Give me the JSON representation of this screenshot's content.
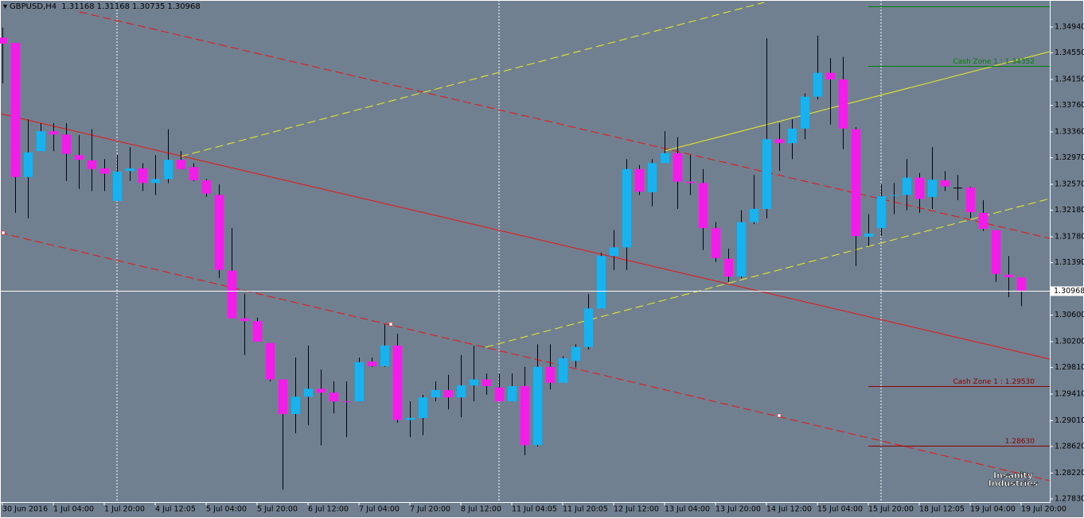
{
  "chart_data": {
    "type": "candlestick",
    "title": "GBPUSD,H4",
    "categories": [
      "30 Jun 2016",
      null,
      null,
      null,
      "1 Jul 04:00",
      null,
      null,
      null,
      "1 Jul 20:00",
      null,
      null,
      null,
      "4 Jul 12:05",
      null,
      null,
      null,
      "5 Jul 04:00",
      null,
      null,
      null,
      "5 Jul 20:00",
      null,
      null,
      null,
      "6 Jul 12:00",
      null,
      null,
      null,
      "7 Jul 04:00",
      null,
      null,
      null,
      "7 Jul 20:00",
      null,
      null,
      null,
      "8 Jul 12:00",
      null,
      null,
      null,
      "11 Jul 04:05",
      null,
      null,
      null,
      "11 Jul 20:05",
      null,
      null,
      null,
      "12 Jul 12:00",
      null,
      null,
      null,
      "13 Jul 04:00",
      null,
      null,
      null,
      "13 Jul 20:00",
      null,
      null,
      null,
      "14 Jul 12:00",
      null,
      null,
      null,
      "15 Jul 04:00",
      null,
      null,
      null,
      "15 Jul 20:00",
      null,
      null,
      null,
      "18 Jul 12:05",
      null,
      null,
      null,
      "19 Jul 04:00",
      null,
      null,
      null,
      "19 Jul 20:00"
    ],
    "open": [
      1.3478,
      1.347,
      1.3268,
      1.3307,
      1.3337,
      1.3332,
      1.3301,
      1.3293,
      1.3281,
      1.3232,
      1.3277,
      1.3281,
      1.3259,
      1.3265,
      1.3294,
      1.3283,
      1.3263,
      1.3241,
      1.3127,
      1.3055,
      1.3051,
      1.3018,
      1.2963,
      1.2911,
      1.2937,
      1.2949,
      1.2943,
      1.293,
      1.293,
      1.299,
      1.2983,
      1.3014,
      1.2902,
      1.2905,
      1.2936,
      1.2947,
      1.2936,
      1.2954,
      1.2963,
      1.2951,
      1.293,
      1.2953,
      1.2864,
      1.2982,
      1.2958,
      1.2991,
      1.3012,
      1.307,
      1.3149,
      1.3162,
      1.328,
      1.3245,
      1.3289,
      1.3304,
      1.3261,
      1.3259,
      1.3191,
      1.3145,
      1.3118,
      1.32,
      1.322,
      1.3325,
      1.3319,
      1.3341,
      1.3389,
      1.3425,
      1.3415,
      1.334,
      1.3178,
      1.3191,
      1.324,
      1.3241,
      1.3267,
      1.3238,
      1.3263,
      1.3252,
      1.3252,
      1.3214,
      1.3188,
      1.3121,
      1.31168
    ],
    "high": [
      1.3493,
      1.347,
      1.3355,
      1.3349,
      1.3349,
      1.3349,
      1.3331,
      1.334,
      1.3295,
      1.3301,
      1.3313,
      1.3289,
      1.3301,
      1.334,
      1.3307,
      1.3289,
      1.3265,
      1.3257,
      1.3191,
      1.3092,
      1.3056,
      1.3018,
      1.2963,
      1.2996,
      1.3014,
      1.2978,
      1.296,
      1.296,
      1.2996,
      1.2996,
      1.3046,
      1.3032,
      1.293,
      1.294,
      1.296,
      1.297,
      1.3,
      1.3014,
      1.2972,
      1.2972,
      1.2972,
      1.2982,
      1.3016,
      1.3016,
      1.2998,
      1.3016,
      1.3092,
      1.3154,
      1.3188,
      1.3295,
      1.3286,
      1.3295,
      1.3337,
      1.3328,
      1.3301,
      1.328,
      1.32,
      1.316,
      1.3218,
      1.3271,
      1.3477,
      1.3349,
      1.3355,
      1.3394,
      1.3481,
      1.3447,
      1.3449,
      1.3343,
      1.3212,
      1.3257,
      1.3259,
      1.3295,
      1.3274,
      1.3313,
      1.3277,
      1.3271,
      1.3253,
      1.3233,
      1.3188,
      1.3149,
      1.31168
    ],
    "low": [
      1.3409,
      1.3214,
      1.3206,
      1.3307,
      1.3307,
      1.3262,
      1.325,
      1.3247,
      1.3247,
      1.3232,
      1.3262,
      1.3247,
      1.3241,
      1.3259,
      1.328,
      1.3262,
      1.3238,
      1.3116,
      1.3055,
      1.3,
      1.302,
      1.296,
      1.2797,
      1.2882,
      1.2894,
      1.2864,
      1.2912,
      1.2876,
      1.293,
      1.2982,
      1.2982,
      1.2898,
      1.2876,
      1.2879,
      1.293,
      1.2918,
      1.2906,
      1.293,
      1.294,
      1.293,
      1.293,
      1.2849,
      1.2862,
      1.2948,
      1.2958,
      1.2981,
      1.3008,
      1.307,
      1.3128,
      1.3128,
      1.3241,
      1.3224,
      1.3289,
      1.322,
      1.3241,
      1.3158,
      1.314,
      1.311,
      1.3116,
      1.3197,
      1.3206,
      1.3277,
      1.3295,
      1.3325,
      1.3385,
      1.3347,
      1.331,
      1.3134,
      1.3164,
      1.3179,
      1.3212,
      1.3218,
      1.3214,
      1.322,
      1.3247,
      1.3233,
      1.3206,
      1.3187,
      1.311,
      1.3087,
      1.30735
    ],
    "close": [
      1.3469,
      1.3268,
      1.3305,
      1.3337,
      1.3332,
      1.3303,
      1.3294,
      1.328,
      1.3273,
      1.3276,
      1.3281,
      1.3259,
      1.3265,
      1.3294,
      1.328,
      1.3263,
      1.3243,
      1.3128,
      1.3055,
      1.3051,
      1.302,
      1.2963,
      1.2911,
      1.2937,
      1.2949,
      1.2943,
      1.293,
      1.2929,
      1.2989,
      1.2983,
      1.3014,
      1.2902,
      1.2905,
      1.2936,
      1.2947,
      1.2936,
      1.2954,
      1.2963,
      1.2953,
      1.293,
      1.2953,
      1.2864,
      1.2982,
      1.2958,
      1.2995,
      1.3012,
      1.307,
      1.3149,
      1.3162,
      1.328,
      1.3246,
      1.3289,
      1.3304,
      1.3261,
      1.3259,
      1.3191,
      1.3146,
      1.3118,
      1.32,
      1.322,
      1.3325,
      1.3319,
      1.3341,
      1.3389,
      1.3425,
      1.3415,
      1.3341,
      1.3179,
      1.3183,
      1.3239,
      1.3241,
      1.3267,
      1.3235,
      1.3264,
      1.3254,
      1.3252,
      1.3215,
      1.319,
      1.3122,
      1.3117,
      1.30968
    ],
    "up_color": "#1ab2ee",
    "down_color": "#f01ee6",
    "ylim": [
      1.27782,
      1.35347
    ],
    "yticks": [
      {
        "value": 1.3494,
        "label": "1.34940"
      },
      {
        "value": 1.3455,
        "label": "1.34550"
      },
      {
        "value": 1.3415,
        "label": "1.34150"
      },
      {
        "value": 1.3376,
        "label": "1.33760"
      },
      {
        "value": 1.3336,
        "label": "1.33360"
      },
      {
        "value": 1.3297,
        "label": "1.32970"
      },
      {
        "value": 1.3257,
        "label": "1.32570"
      },
      {
        "value": 1.3218,
        "label": "1.32180"
      },
      {
        "value": 1.3178,
        "label": "1.31780"
      },
      {
        "value": 1.3139,
        "label": "1.31390"
      },
      {
        "value": 1.306,
        "label": "1.30600"
      },
      {
        "value": 1.302,
        "label": "1.30200"
      },
      {
        "value": 1.2981,
        "label": "1.29810"
      },
      {
        "value": 1.2941,
        "label": "1.29410"
      },
      {
        "value": 1.2901,
        "label": "1.29010"
      },
      {
        "value": 1.2862,
        "label": "1.28620"
      },
      {
        "value": 1.2822,
        "label": "1.28220"
      },
      {
        "value": 1.2783,
        "label": "1.27830"
      }
    ],
    "levels": [
      {
        "value": 1.35251,
        "color": "#008000"
      },
      {
        "value": 1.34352,
        "label": "Cash Zone 1 : 1.34352",
        "color": "#008000"
      },
      {
        "value": 1.2953,
        "label": "Cash Zone 1 : 1.29530",
        "color": "#8b0000"
      },
      {
        "value": 1.2863,
        "label": "1.28630",
        "color": "#8b0000"
      }
    ],
    "watermark": [
      "Insanity",
      "Industries"
    ]
  }
}
